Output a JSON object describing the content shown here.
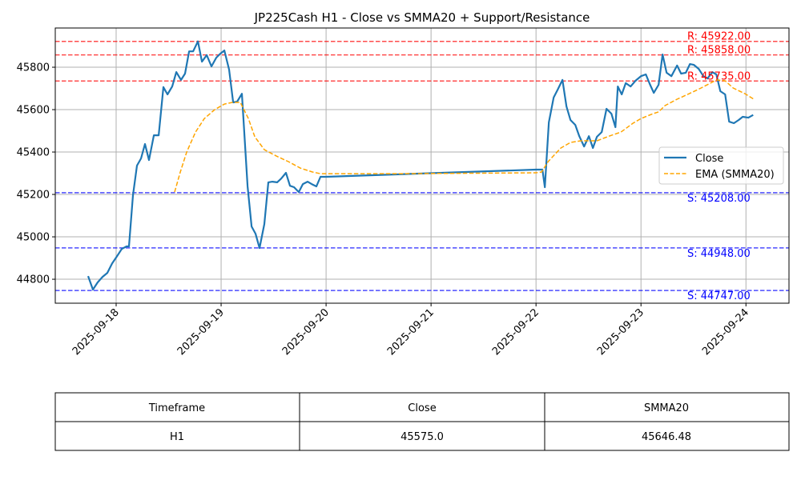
{
  "chart_data": {
    "type": "line",
    "title": "JP225Cash H1 - Close vs SMMA20 + Support/Resistance",
    "xlabel": "",
    "ylabel": "",
    "x_unit": "days since 2025-09-18",
    "xlim": [
      -0.58,
      6.41
    ],
    "ylim": [
      44687,
      45985
    ],
    "grid": true,
    "legend_position": "center-right",
    "x_ticks": [
      {
        "value": 0,
        "label": "2025-09-18"
      },
      {
        "value": 1,
        "label": "2025-09-19"
      },
      {
        "value": 2,
        "label": "2025-09-20"
      },
      {
        "value": 3,
        "label": "2025-09-21"
      },
      {
        "value": 4,
        "label": "2025-09-22"
      },
      {
        "value": 5,
        "label": "2025-09-23"
      },
      {
        "value": 6,
        "label": "2025-09-24"
      }
    ],
    "y_ticks": [
      {
        "value": 44800,
        "label": "44800"
      },
      {
        "value": 45000,
        "label": "45000"
      },
      {
        "value": 45200,
        "label": "45200"
      },
      {
        "value": 45400,
        "label": "45400"
      },
      {
        "value": 45600,
        "label": "45600"
      },
      {
        "value": 45800,
        "label": "45800"
      }
    ],
    "series": [
      {
        "name": "Close",
        "color": "#1f77b4",
        "style": "solid",
        "x": [
          -0.267,
          -0.221,
          -0.176,
          -0.13,
          -0.084,
          -0.038,
          0.008,
          0.053,
          0.099,
          0.122,
          0.16,
          0.198,
          0.237,
          0.275,
          0.313,
          0.359,
          0.405,
          0.45,
          0.489,
          0.534,
          0.573,
          0.618,
          0.656,
          0.695,
          0.733,
          0.779,
          0.817,
          0.863,
          0.908,
          0.954,
          0.992,
          1.031,
          1.076,
          1.115,
          1.153,
          1.198,
          1.252,
          1.29,
          1.328,
          1.366,
          1.412,
          1.45,
          1.489,
          1.534,
          1.573,
          1.618,
          1.656,
          1.695,
          1.74,
          1.779,
          1.824,
          1.863,
          1.908,
          1.947,
          2.0,
          4.0,
          4.061,
          4.084,
          4.122,
          4.168,
          4.206,
          4.252,
          4.29,
          4.328,
          4.374,
          4.412,
          4.458,
          4.504,
          4.542,
          4.58,
          4.626,
          4.672,
          4.718,
          4.756,
          4.779,
          4.817,
          4.855,
          4.901,
          4.947,
          5.0,
          5.046,
          5.084,
          5.122,
          5.168,
          5.206,
          5.244,
          5.29,
          5.344,
          5.382,
          5.427,
          5.466,
          5.504,
          5.55,
          5.595,
          5.634,
          5.679,
          5.718,
          5.756,
          5.802,
          5.84,
          5.885,
          5.931,
          5.969,
          6.023,
          6.069
        ],
        "y": [
          44815,
          44751,
          44785,
          44811,
          44830,
          44875,
          44909,
          44943,
          44955,
          44955,
          45196,
          45336,
          45370,
          45438,
          45362,
          45479,
          45479,
          45706,
          45672,
          45709,
          45777,
          45740,
          45770,
          45875,
          45875,
          45922,
          45826,
          45857,
          45804,
          45845,
          45864,
          45879,
          45789,
          45634,
          45638,
          45675,
          45238,
          45049,
          45015,
          44947,
          45060,
          45257,
          45260,
          45257,
          45275,
          45302,
          45241,
          45234,
          45211,
          45249,
          45260,
          45249,
          45238,
          45283,
          45283,
          45317,
          45317,
          45234,
          45540,
          45657,
          45694,
          45740,
          45615,
          45551,
          45528,
          45475,
          45426,
          45475,
          45419,
          45472,
          45494,
          45604,
          45581,
          45517,
          45709,
          45672,
          45725,
          45709,
          45736,
          45758,
          45766,
          45721,
          45679,
          45717,
          45860,
          45774,
          45758,
          45808,
          45770,
          45774,
          45815,
          45811,
          45792,
          45758,
          45747,
          45777,
          45766,
          45687,
          45672,
          45543,
          45536,
          45551,
          45566,
          45562,
          45575
        ]
      },
      {
        "name": "EMA (SMMA20)",
        "color": "#ffa500",
        "style": "dashed",
        "x": [
          0.557,
          0.611,
          0.672,
          0.756,
          0.84,
          0.939,
          1.031,
          1.107,
          1.183,
          1.26,
          1.321,
          1.412,
          1.527,
          1.641,
          1.756,
          1.87,
          1.947,
          2.71,
          4.0,
          4.053,
          4.115,
          4.237,
          4.328,
          4.427,
          4.58,
          4.695,
          4.809,
          4.924,
          5.0,
          5.115,
          5.168,
          5.229,
          5.344,
          5.458,
          5.573,
          5.687,
          5.725,
          5.802,
          5.878,
          5.992,
          6.084
        ],
        "y": [
          45211,
          45306,
          45400,
          45494,
          45558,
          45600,
          45626,
          45634,
          45634,
          45558,
          45472,
          45411,
          45381,
          45355,
          45324,
          45306,
          45298,
          45298,
          45302,
          45306,
          45355,
          45419,
          45445,
          45453,
          45453,
          45475,
          45494,
          45536,
          45558,
          45581,
          45589,
          45619,
          45649,
          45675,
          45702,
          45732,
          45740,
          45736,
          45702,
          45675,
          45646
        ]
      }
    ],
    "levels": [
      {
        "kind": "resistance",
        "value": 45922,
        "label": "R: 45922.00",
        "color": "#ff0000"
      },
      {
        "kind": "resistance",
        "value": 45858,
        "label": "R: 45858.00",
        "color": "#ff0000"
      },
      {
        "kind": "resistance",
        "value": 45735,
        "label": "R: 45735.00",
        "color": "#ff0000"
      },
      {
        "kind": "support",
        "value": 45208,
        "label": "S: 45208.00",
        "color": "#0000ff"
      },
      {
        "kind": "support",
        "value": 44948,
        "label": "S: 44948.00",
        "color": "#0000ff"
      },
      {
        "kind": "support",
        "value": 44747,
        "label": "S: 44747.00",
        "color": "#0000ff"
      }
    ]
  },
  "table": {
    "headers": [
      "Timeframe",
      "Close",
      "SMMA20"
    ],
    "rows": [
      [
        "H1",
        "45575.0",
        "45646.48"
      ]
    ]
  }
}
